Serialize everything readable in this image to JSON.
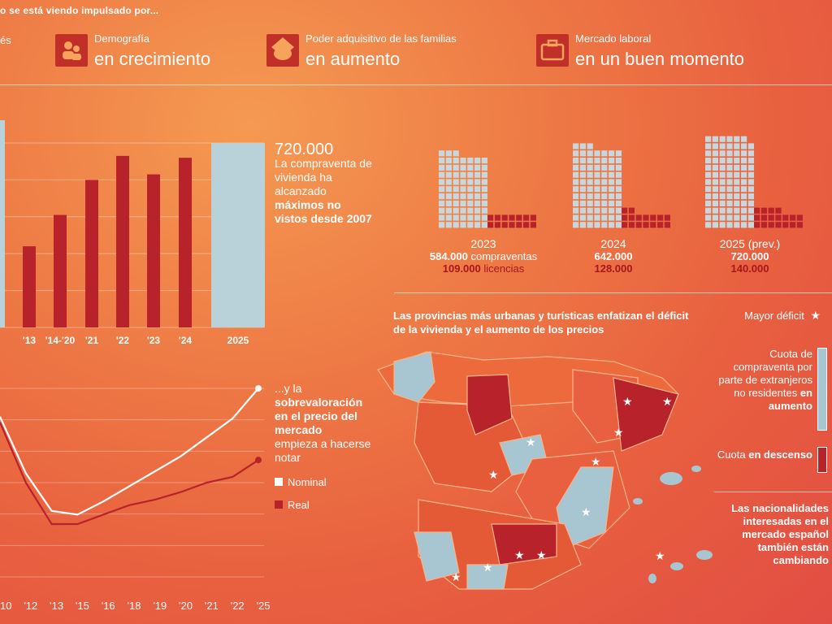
{
  "header": {
    "intro": "o se está viendo impulsado por...",
    "cut_left": "és",
    "items": [
      {
        "small": "Demografía",
        "big": "en crecimiento",
        "icon": "people-icon"
      },
      {
        "small": "Poder adquisitivo de las familias",
        "big": "en aumento",
        "icon": "piggy-bank-icon"
      },
      {
        "small": "Mercado laboral",
        "big": "en un buen momento",
        "icon": "briefcase-icon"
      }
    ]
  },
  "bar_annotation": {
    "value": "720.000",
    "line1": "La compraventa de vivienda ha alcanzado",
    "bold": "máximos no vistos desde 2007"
  },
  "line_annotation": {
    "lead": "...y la",
    "bold": "sobrevaloración en el precio del mercado",
    "tail": "empieza a hacerse notar",
    "legend": [
      "Nominal",
      "Real"
    ]
  },
  "years_panel": [
    {
      "year": "2023",
      "sales": "584.000",
      "sales_unit": "compraventas",
      "licenses": "109.000",
      "licenses_unit": "licencias"
    },
    {
      "year": "2024",
      "sales": "642.000",
      "sales_unit": "",
      "licenses": "128.000",
      "licenses_unit": ""
    },
    {
      "year": "2025 (prev.)",
      "sales": "720.000",
      "sales_unit": "",
      "licenses": "140.000",
      "licenses_unit": ""
    }
  ],
  "map": {
    "title": "Las provincias más urbanas y turísticas enfatizan el déficit de la vivienda y el aumento de los precios",
    "legend_star": "Mayor déficit",
    "legend_blue": "Cuota de compraventa por parte de extranjeros no residentes",
    "legend_blue_bold": "en aumento",
    "legend_red": "Cuota",
    "legend_red_bold": "en descenso",
    "footer": "Las nacionalidades interesadas en el mercado español también están cambiando"
  },
  "chart_data": [
    {
      "type": "bar",
      "title": "",
      "categories": [
        "'13",
        "'14-'20",
        "'21",
        "'22",
        "'23",
        "'24",
        "2025"
      ],
      "values": [
        0.44,
        0.61,
        0.8,
        0.93,
        0.83,
        0.92,
        1.0
      ],
      "highlight": "2025",
      "colors": {
        "bar": "#b8222a",
        "highlight": "#b9d2da"
      }
    },
    {
      "type": "line",
      "x": [
        "'10",
        "'12",
        "'13",
        "'15",
        "'16",
        "'18",
        "'19",
        "'20",
        "'21",
        "'22",
        "'25"
      ],
      "series": [
        {
          "name": "Nominal",
          "color": "#ffffff",
          "values": [
            0.85,
            0.55,
            0.35,
            0.33,
            0.4,
            0.48,
            0.56,
            0.64,
            0.74,
            0.84,
            1.0
          ]
        },
        {
          "name": "Real",
          "color": "#b8222a",
          "values": [
            0.82,
            0.5,
            0.28,
            0.28,
            0.33,
            0.38,
            0.41,
            0.45,
            0.5,
            0.53,
            0.62
          ]
        }
      ]
    },
    {
      "type": "bar",
      "categories": [
        "2023",
        "2024",
        "2025 (prev.)"
      ],
      "series": [
        {
          "name": "compraventas",
          "values": [
            584000,
            642000,
            720000
          ]
        },
        {
          "name": "licencias",
          "values": [
            109000,
            128000,
            140000
          ]
        }
      ]
    }
  ]
}
